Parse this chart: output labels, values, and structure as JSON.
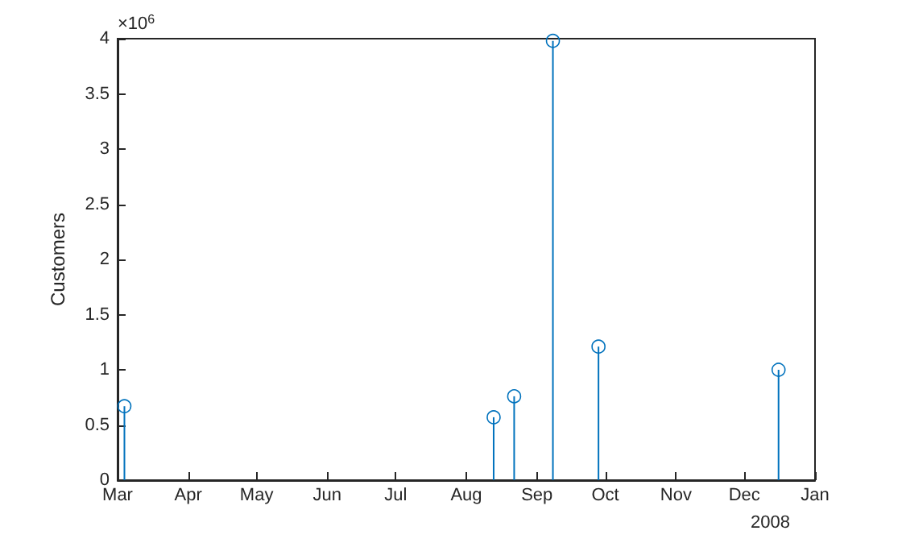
{
  "chart_data": {
    "type": "lollipop",
    "ylabel": "Customers",
    "x": [
      "2008-03-04",
      "2008-08-13",
      "2008-08-22",
      "2008-09-08",
      "2008-09-28",
      "2008-12-16"
    ],
    "values": [
      0.67,
      0.57,
      0.76,
      3.98,
      1.21,
      1.0
    ],
    "color": "#0072bd",
    "marker": "circle",
    "xlim": [
      "2008-03-01",
      "2009-01-01"
    ],
    "xticks": [
      {
        "value": "2008-03-01",
        "label": "Mar"
      },
      {
        "value": "2008-04-01",
        "label": "Apr"
      },
      {
        "value": "2008-05-01",
        "label": "May"
      },
      {
        "value": "2008-06-01",
        "label": "Jun"
      },
      {
        "value": "2008-07-01",
        "label": "Jul"
      },
      {
        "value": "2008-08-01",
        "label": "Aug"
      },
      {
        "value": "2008-09-01",
        "label": "Sep"
      },
      {
        "value": "2008-10-01",
        "label": "Oct"
      },
      {
        "value": "2008-11-01",
        "label": "Nov"
      },
      {
        "value": "2008-12-01",
        "label": "Dec"
      },
      {
        "value": "2009-01-01",
        "label": "Jan"
      }
    ],
    "ylim": [
      0,
      4
    ],
    "yticks": [
      0,
      0.5,
      1,
      1.5,
      2,
      2.5,
      3,
      3.5,
      4
    ],
    "annotations": [
      "×10$^{6}$",
      "2008"
    ],
    "grid": false
  }
}
